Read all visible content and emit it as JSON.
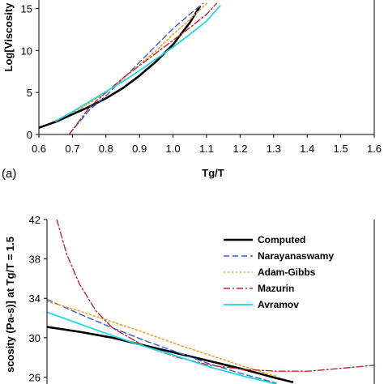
{
  "chart_data": [
    {
      "type": "line",
      "panel_label": "(a)",
      "xlabel": "Tg/T",
      "ylabel": "Log[Viscosity",
      "xlim": [
        0.6,
        1.6
      ],
      "ylim": [
        0,
        16
      ],
      "x_ticks": [
        "0.6",
        "0.7",
        "0.8",
        "0.9",
        "1.0",
        "1.1",
        "1.2",
        "1.3",
        "1.4",
        "1.5",
        "1.6"
      ],
      "y_ticks": [
        "0",
        "5",
        "10",
        "15"
      ],
      "grid": false,
      "legend": "none",
      "series": [
        {
          "key": "computed",
          "color": "#000000",
          "dash": "solid",
          "width": 2.6,
          "x": [
            0.6,
            0.65,
            0.7,
            0.75,
            0.8,
            0.85,
            0.9,
            0.95,
            1.0,
            1.05,
            1.08
          ],
          "y": [
            0.8,
            1.5,
            2.4,
            3.3,
            4.3,
            5.5,
            7.0,
            8.7,
            10.7,
            13.3,
            15.2
          ]
        },
        {
          "key": "narayanaswamy",
          "color": "#3a5bd9",
          "dash": "7 4",
          "width": 1.4,
          "x": [
            0.69,
            0.75,
            0.8,
            0.85,
            0.9,
            0.95,
            1.0,
            1.05,
            1.09
          ],
          "y": [
            0.0,
            2.9,
            4.6,
            6.6,
            8.6,
            10.6,
            12.6,
            14.3,
            15.6
          ]
        },
        {
          "key": "adam-gibbs",
          "color": "#f0a030",
          "dash": "2 3",
          "width": 1.6,
          "x": [
            0.65,
            0.7,
            0.75,
            0.8,
            0.85,
            0.9,
            0.95,
            1.0,
            1.05,
            1.1
          ],
          "y": [
            1.7,
            2.6,
            3.7,
            5.0,
            6.6,
            8.3,
            10.0,
            11.9,
            13.7,
            15.6
          ]
        },
        {
          "key": "mazurin",
          "color": "#c0282a",
          "dash": "8 3 2 3",
          "width": 1.4,
          "x": [
            0.69,
            0.75,
            0.8,
            0.85,
            0.9,
            0.95,
            1.0,
            1.05,
            1.1,
            1.13
          ],
          "y": [
            0.0,
            3.2,
            5.0,
            6.7,
            8.2,
            9.7,
            11.2,
            12.7,
            14.3,
            15.6
          ]
        },
        {
          "key": "avramov",
          "color": "#22d8e0",
          "dash": "solid",
          "width": 1.8,
          "x": [
            0.65,
            0.7,
            0.75,
            0.8,
            0.85,
            0.9,
            0.95,
            1.0,
            1.05,
            1.1,
            1.14
          ],
          "y": [
            1.6,
            2.7,
            3.9,
            5.1,
            6.3,
            7.6,
            9.0,
            10.4,
            11.9,
            13.5,
            15.3
          ]
        }
      ]
    },
    {
      "type": "line",
      "ylabel": "scosity (Pa-s)] at Tg/T = 1.5",
      "ylim": [
        25.3,
        42
      ],
      "y_ticks": [
        "26",
        "30",
        "34",
        "38",
        "42"
      ],
      "x_range_inputs": [
        0,
        1
      ],
      "grid": false,
      "legend": "top-right",
      "series": [
        {
          "key": "computed",
          "name": "Computed",
          "color": "#000000",
          "dash": "solid",
          "width": 2.6,
          "x": [
            0.0,
            0.1,
            0.2,
            0.3,
            0.4,
            0.5,
            0.6,
            0.7,
            0.75
          ],
          "y": [
            31.1,
            30.6,
            30.0,
            29.2,
            28.4,
            27.6,
            26.8,
            25.9,
            25.5
          ]
        },
        {
          "key": "narayanaswamy",
          "name": "Narayanaswamy",
          "color": "#3a5bd9",
          "dash": "7 4",
          "width": 1.4,
          "x": [
            0.0,
            0.1,
            0.2,
            0.3,
            0.4,
            0.5,
            0.6,
            0.7
          ],
          "y": [
            33.9,
            32.4,
            31.0,
            29.7,
            28.5,
            27.3,
            26.3,
            25.4
          ]
        },
        {
          "key": "adam-gibbs",
          "name": "Adam-Gibbs",
          "color": "#f0a030",
          "dash": "2 3",
          "width": 1.6,
          "x": [
            0.0,
            0.1,
            0.2,
            0.3,
            0.4,
            0.5,
            0.6,
            0.7
          ],
          "y": [
            33.7,
            32.7,
            31.6,
            30.5,
            29.3,
            28.2,
            27.1,
            26.1
          ]
        },
        {
          "key": "mazurin",
          "name": "Mazurin",
          "color": "#c0282a",
          "dash": "8 3 2 3",
          "width": 1.4,
          "x": [
            0.03,
            0.06,
            0.1,
            0.15,
            0.2,
            0.3,
            0.4,
            0.5,
            0.6,
            0.7,
            0.8,
            0.9,
            1.0
          ],
          "y": [
            42.0,
            38.5,
            35.4,
            32.7,
            31.0,
            29.1,
            28.0,
            27.2,
            26.8,
            26.6,
            26.6,
            26.9,
            27.2
          ]
        },
        {
          "key": "avramov",
          "name": "Avramov",
          "color": "#22d8e0",
          "dash": "solid",
          "width": 1.8,
          "x": [
            0.0,
            0.1,
            0.2,
            0.3,
            0.4,
            0.5,
            0.6,
            0.7
          ],
          "y": [
            32.6,
            31.4,
            30.2,
            29.1,
            28.1,
            27.0,
            26.1,
            25.3
          ]
        }
      ]
    }
  ]
}
